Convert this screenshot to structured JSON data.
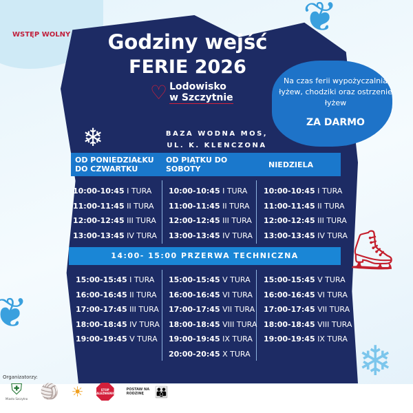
{
  "badge": "WSTĘP WOLNY",
  "title_line1": "Godziny wejść",
  "title_line2": "FERIE 2026",
  "logo": {
    "line1": "Lodowisko",
    "line2": "w Szczytnie"
  },
  "rental": {
    "text": "Na czas ferii wypożyczalnia łyżew, chodziki oraz ostrzenie łyżew",
    "highlight": "ZA DARMO"
  },
  "address": {
    "line1": "BAZA WODNA MOS,",
    "line2": "UL. K. KLENCZONA"
  },
  "columns": [
    {
      "header": "OD PONIEDZIAŁKU DO CZWARTKU",
      "morning": [
        [
          "10:00-10:45",
          "I TURA"
        ],
        [
          "11:00-11:45",
          "II TURA"
        ],
        [
          "12:00-12:45",
          "III TURA"
        ],
        [
          "13:00-13:45",
          "IV TURA"
        ]
      ],
      "afternoon": [
        [
          "15:00-15:45",
          "I TURA"
        ],
        [
          "16:00-16:45",
          "II TURA"
        ],
        [
          "17:00-17:45",
          "III TURA"
        ],
        [
          "18:00-18:45",
          "IV TURA"
        ],
        [
          "19:00-19:45",
          "V TURA"
        ]
      ]
    },
    {
      "header": "OD PIĄTKU DO SOBOTY",
      "morning": [
        [
          "10:00-10:45",
          "I TURA"
        ],
        [
          "11:00-11:45",
          "II TURA"
        ],
        [
          "12:00-12:45",
          "III TURA"
        ],
        [
          "13:00-13:45",
          "IV TURA"
        ]
      ],
      "afternoon": [
        [
          "15:00-15:45",
          "V TURA"
        ],
        [
          "16:00-16:45",
          "VI TURA"
        ],
        [
          "17:00-17:45",
          "VII TURA"
        ],
        [
          "18:00-18:45",
          "VIII TURA"
        ],
        [
          "19:00-19:45",
          "IX TURA"
        ],
        [
          "20:00-20:45",
          "X TURA"
        ]
      ]
    },
    {
      "header": "NIEDZIELA",
      "morning": [
        [
          "10:00-10:45",
          "I TURA"
        ],
        [
          "11:00-11:45",
          "II TURA"
        ],
        [
          "12:00-12:45",
          "III TURA"
        ],
        [
          "13:00-13:45",
          "IV TURA"
        ]
      ],
      "afternoon": [
        [
          "15:00-15:45",
          "V TURA"
        ],
        [
          "16:00-16:45",
          "VI TURA"
        ],
        [
          "17:00-17:45",
          "VII TURA"
        ],
        [
          "18:00-18:45",
          "VIII TURA"
        ],
        [
          "19:00-19:45",
          "IX TURA"
        ]
      ]
    }
  ],
  "break": "14:00- 15:00  PRZERWA TECHNICZNA",
  "organizers_label": "Organizatorzy:",
  "organizer_logos": [
    "Miasto Szczytno",
    "STOP UZALEŻNIENIOM",
    "POSTAW NA RODZINĘ"
  ],
  "colors": {
    "navy": "#1d2b64",
    "header_blue": "#1a78cc",
    "heart_red": "#d3203b"
  }
}
